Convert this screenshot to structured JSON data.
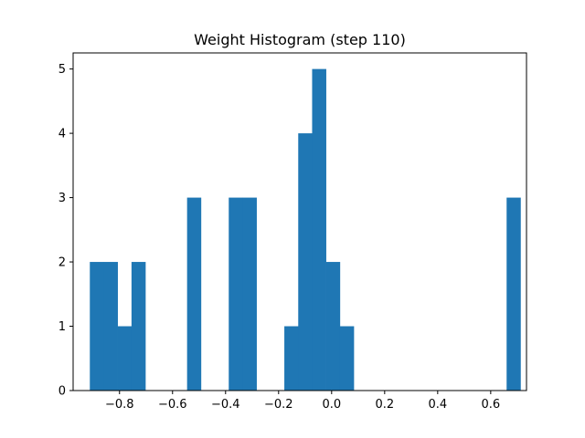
{
  "chart_data": {
    "type": "bar",
    "title": "Weight Histogram (step 110)",
    "xlabel": "",
    "ylabel": "",
    "bar_color": "#1f77b4",
    "xlim": [
      -0.975,
      0.735
    ],
    "ylim": [
      0,
      5.25
    ],
    "x_ticks": [
      -0.8,
      -0.6,
      -0.4,
      -0.2,
      0.0,
      0.2,
      0.4,
      0.6
    ],
    "x_tick_labels": [
      "−0.8",
      "−0.6",
      "−0.4",
      "−0.2",
      "0.0",
      "0.2",
      "0.4",
      "0.6"
    ],
    "y_ticks": [
      0,
      1,
      2,
      3,
      4,
      5
    ],
    "y_tick_labels": [
      "0",
      "1",
      "2",
      "3",
      "4",
      "5"
    ],
    "bin_start": -0.912,
    "bin_width": 0.0524,
    "counts": [
      2,
      2,
      1,
      2,
      0,
      0,
      0,
      3,
      0,
      0,
      3,
      3,
      0,
      0,
      1,
      4,
      5,
      2,
      1,
      0,
      0,
      0,
      0,
      0,
      0,
      0,
      0,
      0,
      0,
      0,
      3
    ],
    "grid": false,
    "legend": "none"
  }
}
